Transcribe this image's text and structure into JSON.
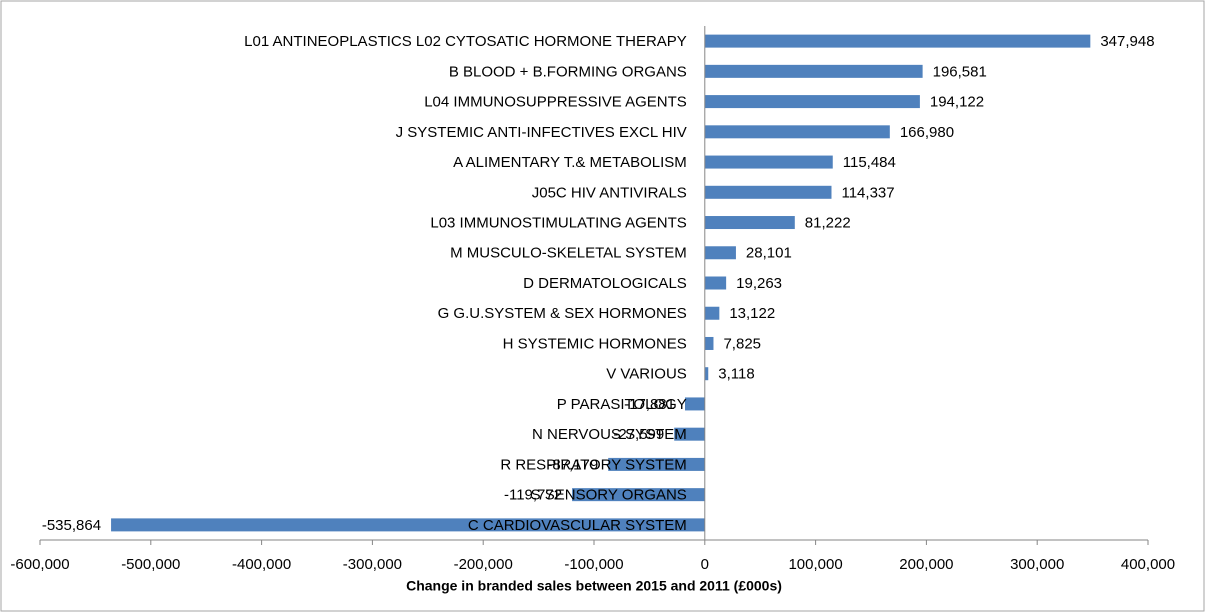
{
  "chart_data": {
    "type": "hbar",
    "xlabel": "Change in  branded sales between 2015 and 2011 (£000s)",
    "categories": [
      "L01 ANTINEOPLASTICS L02 CYTOSATIC HORMONE THERAPY",
      "B BLOOD + B.FORMING ORGANS",
      "L04 IMMUNOSUPPRESSIVE AGENTS",
      "J SYSTEMIC ANTI-INFECTIVES EXCL HIV",
      "A ALIMENTARY T.& METABOLISM",
      "J05C HIV ANTIVIRALS",
      "L03 IMMUNOSTIMULATING AGENTS",
      "M MUSCULO-SKELETAL SYSTEM",
      "D DERMATOLOGICALS",
      "G G.U.SYSTEM & SEX HORMONES",
      "H SYSTEMIC HORMONES",
      "V VARIOUS",
      "P PARASITOLOGY",
      "N NERVOUS SYSTEM",
      "R RESPIRATORY SYSTEM",
      "S SENSORY ORGANS",
      "C CARDIOVASCULAR SYSTEM"
    ],
    "values": [
      347948,
      196581,
      194122,
      166980,
      115484,
      114337,
      81222,
      28101,
      19263,
      13122,
      7825,
      3118,
      -17881,
      -27599,
      -87179,
      -119772,
      -535864
    ],
    "value_labels": [
      "347,948",
      "196,581",
      "194,122",
      "166,980",
      "115,484",
      "114,337",
      "81,222",
      "28,101",
      "19,263",
      "13,122",
      "7,825",
      "3,118",
      "-17,881",
      "-27,599",
      "-87,179",
      "-119,772",
      "-535,864"
    ],
    "color": "#4f81bd",
    "xlim": [
      -600000,
      400000
    ],
    "xticks": [
      {
        "value": -600000,
        "label": "-600,000"
      },
      {
        "value": -500000,
        "label": "-500,000"
      },
      {
        "value": -400000,
        "label": "-400,000"
      },
      {
        "value": -300000,
        "label": "-300,000"
      },
      {
        "value": -200000,
        "label": "-200,000"
      },
      {
        "value": -100000,
        "label": "-100,000"
      },
      0,
      {
        "value": 100000,
        "label": "100,000"
      },
      {
        "value": 200000,
        "label": "200,000"
      },
      {
        "value": 300000,
        "label": "300,000"
      },
      {
        "value": 400000,
        "label": "400,000"
      }
    ]
  }
}
